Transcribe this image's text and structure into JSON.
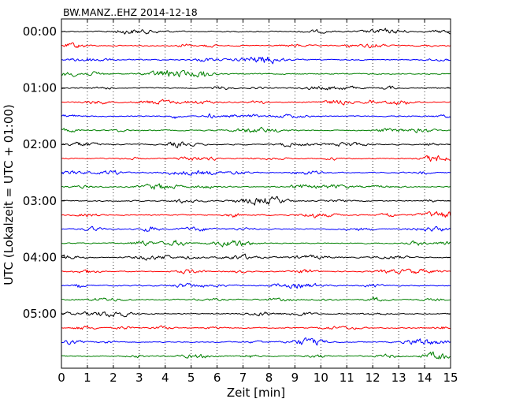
{
  "chart_data": {
    "type": "line",
    "title": "BW.MANZ..EHZ 2014-12-18",
    "xlabel": "Zeit  [min]",
    "ylabel": "UTC (Lokalzeit = UTC + 01:00)",
    "xlim": [
      0,
      15
    ],
    "x_ticks": [
      "0",
      "1",
      "2",
      "3",
      "4",
      "5",
      "6",
      "7",
      "8",
      "9",
      "10",
      "11",
      "12",
      "13",
      "14",
      "15"
    ],
    "y_ticks": [
      "00:00",
      "01:00",
      "02:00",
      "03:00",
      "04:00",
      "05:00"
    ],
    "trace_minutes": 15,
    "trace_count": 24,
    "trace_colors": [
      "#000000",
      "#ff0000",
      "#0000ff",
      "#008000"
    ],
    "vertical_grid": "dotted",
    "horizontal_grid": "none",
    "series_description": "Seismogram helicorder: consecutive 15-minute traces of station BW.MANZ channel EHZ, stacked from 00:00 to 05:45 UTC, colors cycling black, red, blue, green"
  }
}
